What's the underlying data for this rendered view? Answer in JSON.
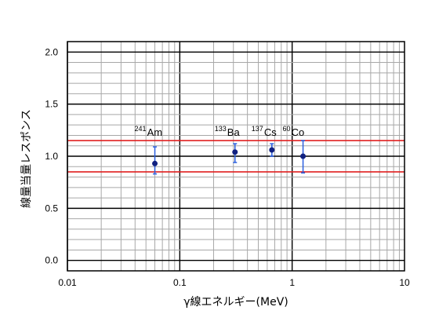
{
  "chart_data": {
    "type": "scatter",
    "title": "",
    "xlabel": "γ線エネルギー(MeV)",
    "ylabel": "線量当量レスポンス",
    "xscale": "log",
    "xlim": [
      0.01,
      10
    ],
    "ylim": [
      -0.1,
      2.1
    ],
    "x_ticks": [
      0.01,
      0.1,
      1,
      10
    ],
    "x_tick_labels": [
      "0.01",
      "0.1",
      "1",
      "10"
    ],
    "y_ticks": [
      0.0,
      0.5,
      1.0,
      1.5,
      2.0
    ],
    "y_tick_labels": [
      "0.0",
      "0.5",
      "1.0",
      "1.5",
      "2.0"
    ],
    "grid": true,
    "reference_lines": [
      1.15,
      0.85
    ],
    "reference_line_color": "#e02020",
    "marker_color": "#102080",
    "errorbar_color": "#2a5fe0",
    "series": [
      {
        "points": [
          {
            "x": 0.06,
            "y": 0.93,
            "yerr_low": 0.83,
            "yerr_high": 1.09,
            "mass": "241",
            "symbol": "Am"
          },
          {
            "x": 0.31,
            "y": 1.04,
            "yerr_low": 0.94,
            "yerr_high": 1.12,
            "mass": "133",
            "symbol": "Ba"
          },
          {
            "x": 0.66,
            "y": 1.06,
            "yerr_low": 1.0,
            "yerr_high": 1.12,
            "mass": "137",
            "symbol": "Cs"
          },
          {
            "x": 1.25,
            "y": 1.0,
            "yerr_low": 0.84,
            "yerr_high": 1.15,
            "mass": "60",
            "symbol": "Co"
          }
        ]
      }
    ]
  }
}
